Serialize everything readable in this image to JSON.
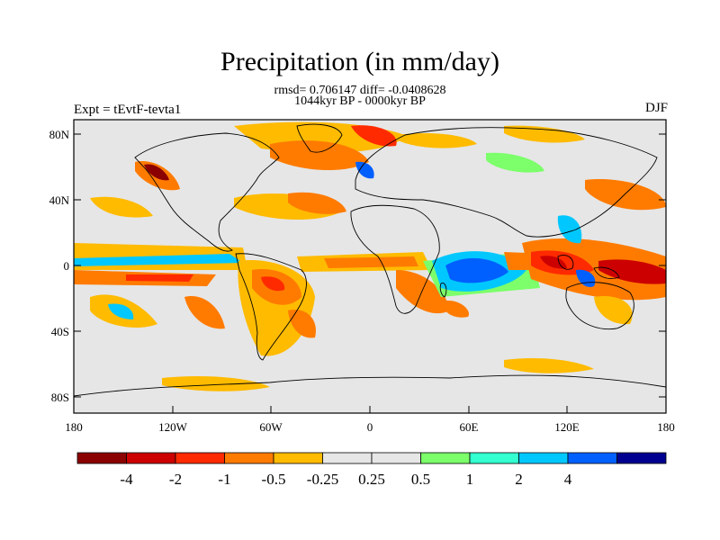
{
  "title": "Precipitation (in mm/day)",
  "stats_line": "rmsd= 0.706147 diff= -0.0408628",
  "period_line": "1044kyr BP - 0000kyr BP",
  "experiment_label": "Expt = tEvtF-tevta1",
  "season_label": "DJF",
  "lat_ticks": [
    "80N",
    "40N",
    "0",
    "40S",
    "80S"
  ],
  "lon_ticks": [
    "180",
    "120W",
    "60W",
    "0",
    "60E",
    "120E",
    "180"
  ],
  "colorbar": {
    "colors": [
      "#8b0000",
      "#cc0000",
      "#ff2a00",
      "#ff7b00",
      "#ffbb00",
      "#e6e6e6",
      "#e6e6e6",
      "#7cff6a",
      "#33ffd0",
      "#00c8ff",
      "#0060ff",
      "#000090"
    ],
    "labels": [
      "-4",
      "-2",
      "-1",
      "-0.5",
      "-0.25",
      "0.25",
      "0.5",
      "1",
      "2",
      "4"
    ]
  },
  "colors": {
    "background": "#e6e6e6",
    "coast": "#000000"
  }
}
